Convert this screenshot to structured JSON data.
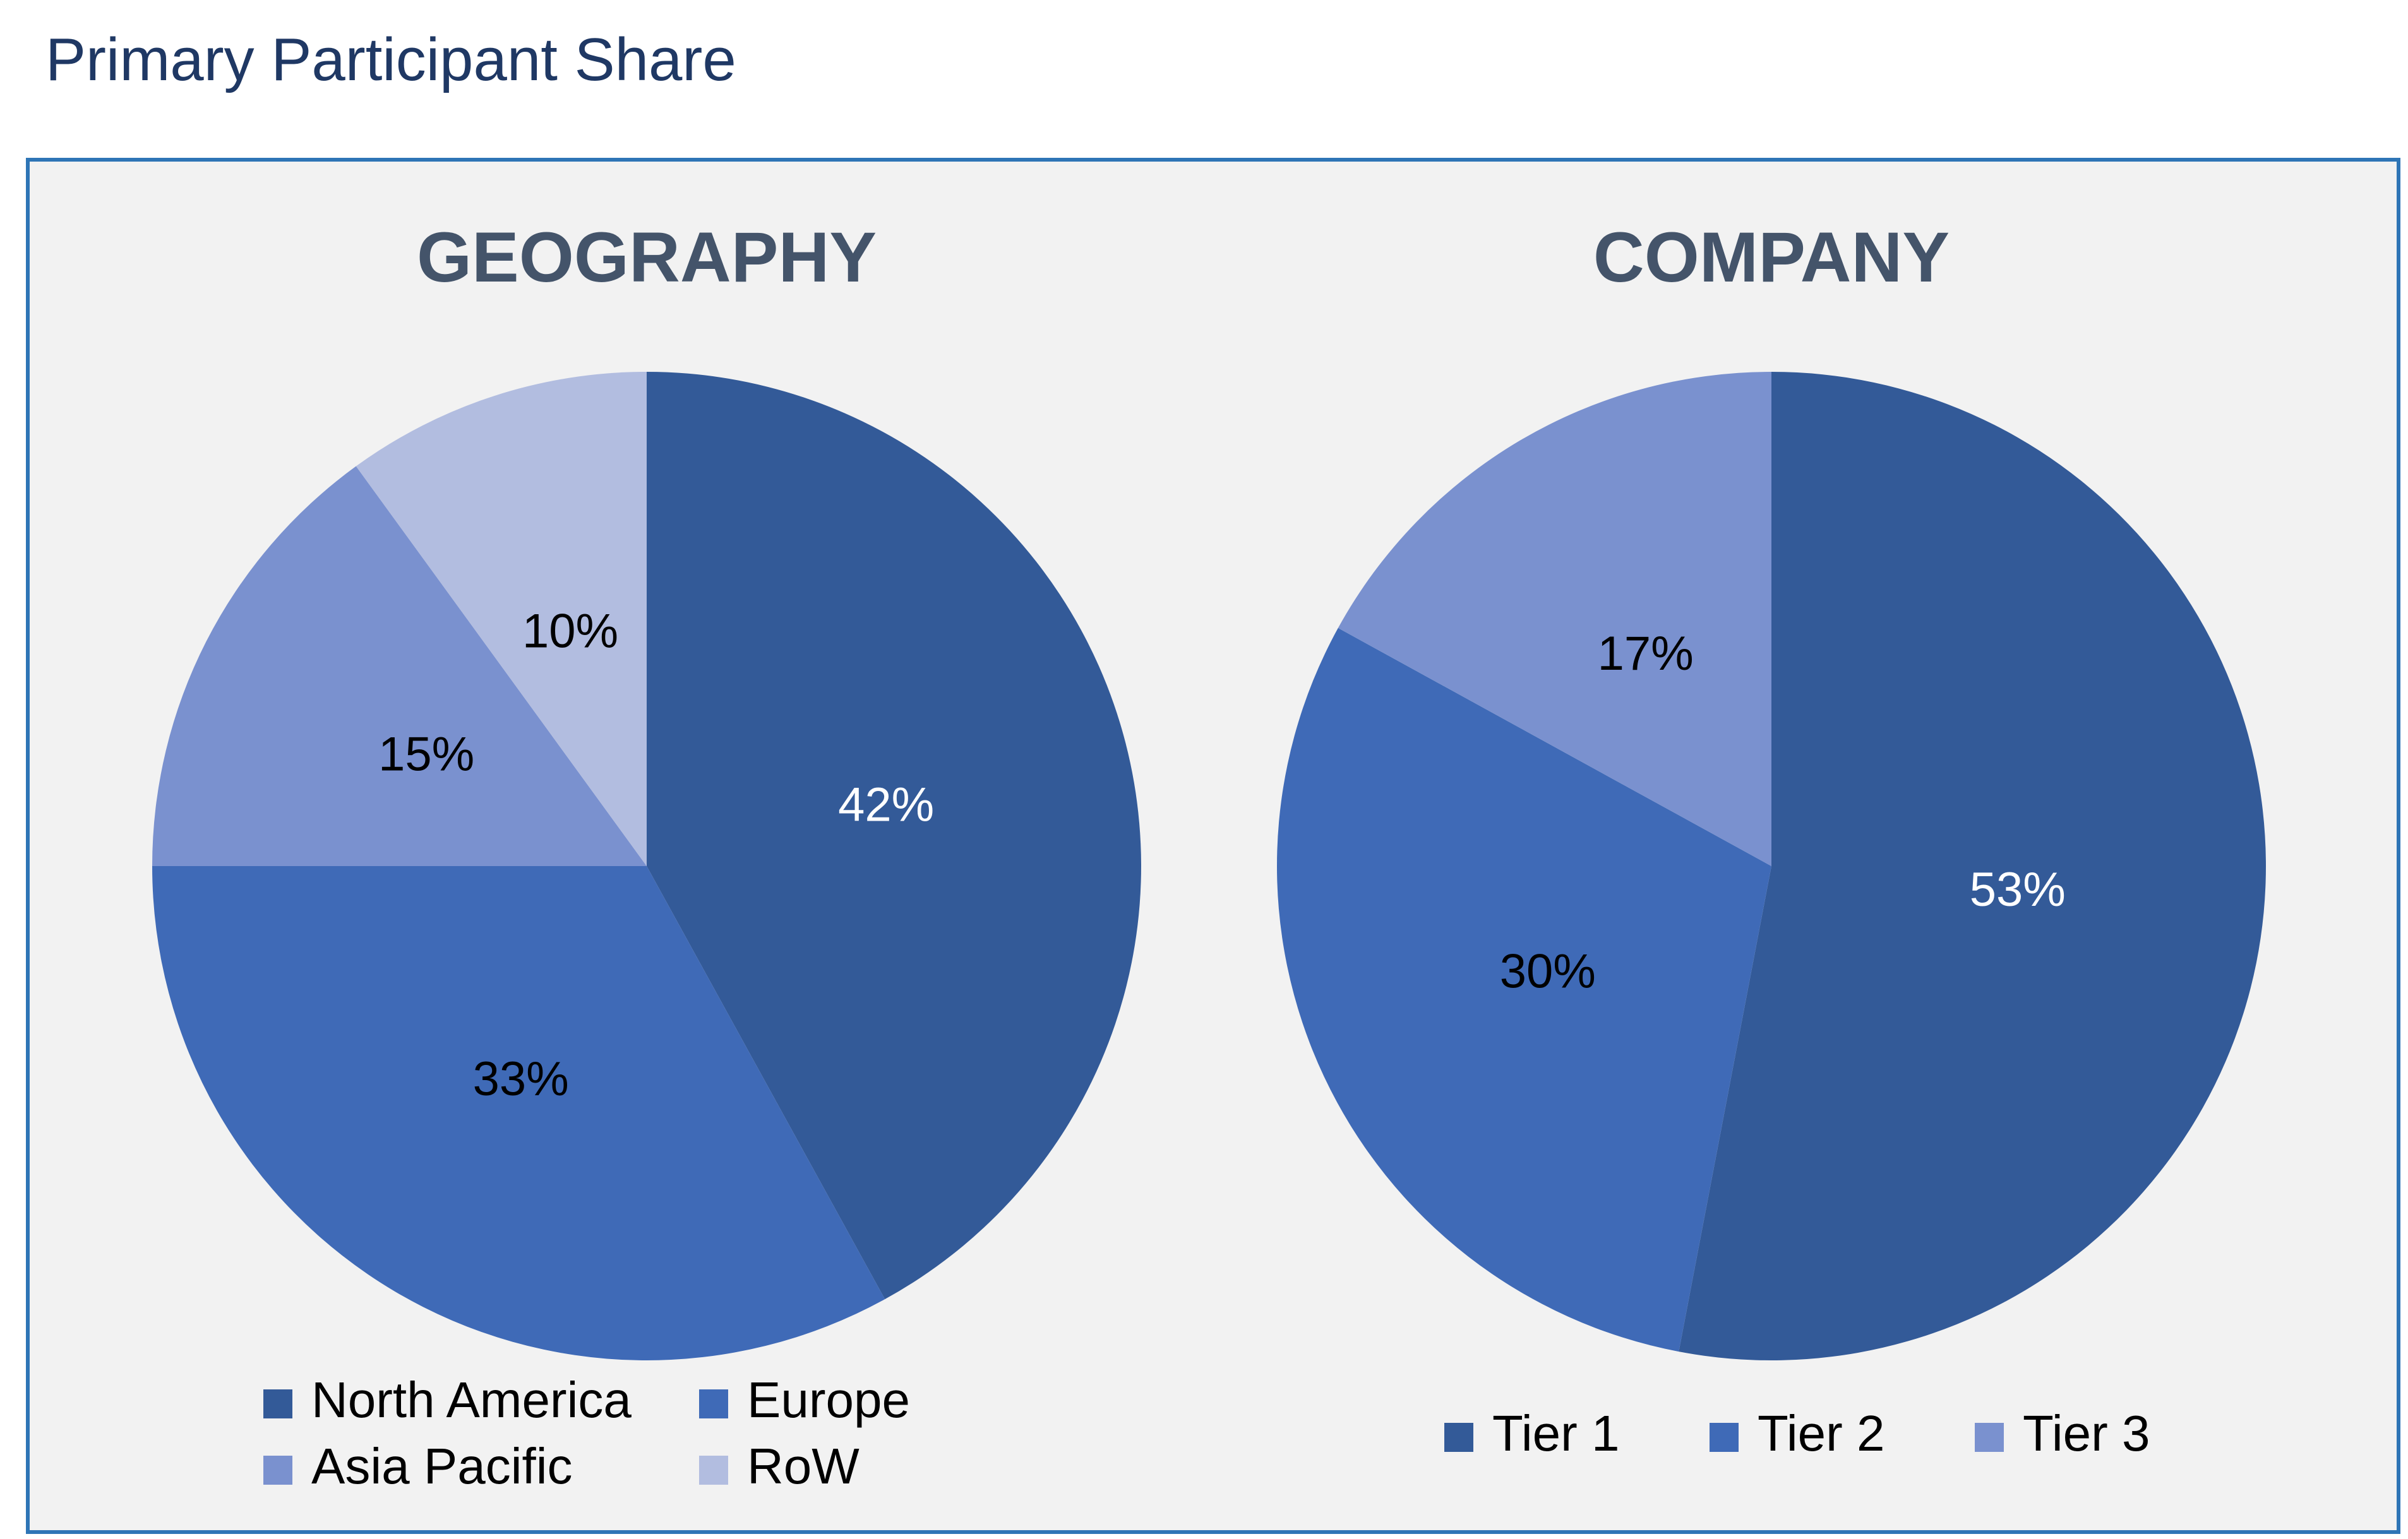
{
  "page_title": "Primary Participant Share",
  "colors": {
    "border": "#2e75b6",
    "panel_background": "#f2f2f2",
    "title_text": "#1f3864",
    "chart_title_text": "#44546a"
  },
  "chart_data": [
    {
      "type": "pie",
      "title": "GEOGRAPHY",
      "categories": [
        "North America",
        "Europe",
        "Asia Pacific",
        "RoW"
      ],
      "values": [
        42,
        33,
        15,
        10
      ],
      "labels": [
        "42%",
        "33%",
        "15%",
        "10%"
      ],
      "colors": [
        "#335a98",
        "#3f6ab7",
        "#7a91cf",
        "#b2bde0"
      ],
      "label_colors": [
        "#ffffff",
        "#000000",
        "#000000",
        "#000000"
      ],
      "legend": {
        "placement": "bottom",
        "columns": 2
      }
    },
    {
      "type": "pie",
      "title": "COMPANY",
      "categories": [
        "Tier 1",
        "Tier 2",
        "Tier 3"
      ],
      "values": [
        53,
        30,
        17
      ],
      "labels": [
        "53%",
        "30%",
        "17%"
      ],
      "colors": [
        "#335a98",
        "#3f6ab7",
        "#7a91cf"
      ],
      "label_colors": [
        "#ffffff",
        "#000000",
        "#000000"
      ],
      "legend": {
        "placement": "bottom",
        "columns": 3
      }
    }
  ]
}
